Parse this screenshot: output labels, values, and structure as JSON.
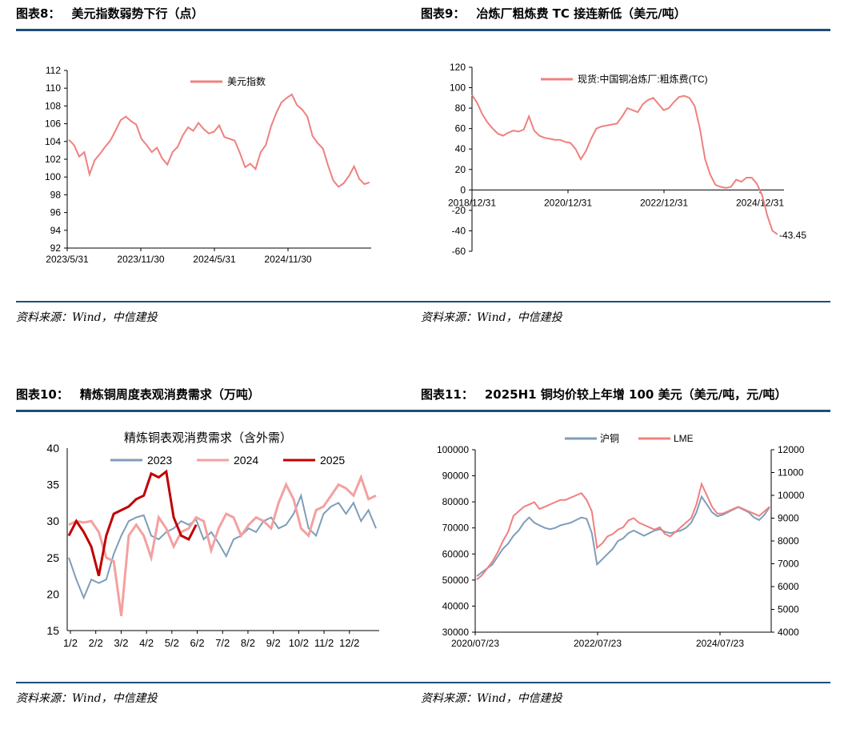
{
  "source_text": "资料来源：Wind，中信建投",
  "colors": {
    "rule": "#1f4e79",
    "pink": "#f08080",
    "blue": "#7f9db9",
    "dark_red": "#c00000",
    "light_pink": "#f4a0a0"
  },
  "panels": [
    {
      "num": "图表8：",
      "title": "美元指数弱势下行（点）"
    },
    {
      "num": "图表9：",
      "title": "冶炼厂粗炼费 TC 接连新低（美元/吨）"
    },
    {
      "num": "图表10：",
      "title": "精炼铜周度表观消费需求（万吨）"
    },
    {
      "num": "图表11：",
      "title": "2025H1 铜均价较上年增 100 美元（美元/吨，元/吨）"
    }
  ],
  "chart_data": [
    {
      "type": "line",
      "legend": [
        "美元指数"
      ],
      "y_ticks": [
        "112",
        "110",
        "108",
        "106",
        "104",
        "102",
        "100",
        "98",
        "96",
        "94",
        "92"
      ],
      "ylim": [
        92,
        112
      ],
      "x_ticks": [
        "2023/5/31",
        "2023/11/30",
        "2024/5/31",
        "2024/11/30"
      ],
      "series": [
        {
          "name": "美元指数",
          "values": [
            104.2,
            103.6,
            102.3,
            102.8,
            100.3,
            101.9,
            102.6,
            103.4,
            104.1,
            105.2,
            106.4,
            106.8,
            106.3,
            105.9,
            104.3,
            103.6,
            102.8,
            103.3,
            102.1,
            101.4,
            102.8,
            103.4,
            104.7,
            105.6,
            105.2,
            106.1,
            105.4,
            104.9,
            105.1,
            105.8,
            104.5,
            104.3,
            104.1,
            102.7,
            101.1,
            101.5,
            100.9,
            102.8,
            103.6,
            105.7,
            107.2,
            108.4,
            108.9,
            109.3,
            108.1,
            107.6,
            106.8,
            104.6,
            103.8,
            103.2,
            101.3,
            99.6,
            98.9,
            99.3,
            100.1,
            101.2,
            99.8,
            99.2,
            99.4
          ]
        }
      ]
    },
    {
      "type": "line",
      "legend": [
        "现货:中国铜冶炼厂:粗炼费(TC)"
      ],
      "y_ticks": [
        "120",
        "100",
        "80",
        "60",
        "40",
        "20",
        "0",
        "-20",
        "-40",
        "-60"
      ],
      "ylim": [
        -60,
        120
      ],
      "x_ticks": [
        "2018/12/31",
        "2020/12/31",
        "2022/12/31",
        "2024/12/31"
      ],
      "end_label": "-43.45",
      "series": [
        {
          "name": "TC",
          "values": [
            93,
            85,
            74,
            66,
            60,
            55,
            53,
            56,
            58,
            57,
            59,
            72,
            58,
            53,
            51,
            50,
            49,
            49,
            47,
            46,
            40,
            30,
            38,
            50,
            60,
            62,
            63,
            64,
            65,
            72,
            80,
            78,
            76,
            84,
            88,
            90,
            84,
            78,
            80,
            86,
            91,
            92,
            90,
            82,
            60,
            30,
            15,
            5,
            3,
            2,
            3,
            10,
            8,
            12,
            12,
            6,
            -5,
            -25,
            -40,
            -43.45
          ]
        }
      ]
    },
    {
      "type": "line",
      "title": "精炼铜表观消费需求（含外需）",
      "legend": [
        "2023",
        "2024",
        "2025"
      ],
      "y_ticks": [
        "40",
        "35",
        "30",
        "25",
        "20",
        "15"
      ],
      "ylim": [
        15,
        40
      ],
      "x_ticks": [
        "1/2",
        "2/2",
        "3/2",
        "4/2",
        "5/2",
        "6/2",
        "7/2",
        "8/2",
        "9/2",
        "10/2",
        "11/2",
        "12/2"
      ],
      "series": [
        {
          "name": "2023",
          "values": [
            25.0,
            22.0,
            19.5,
            22.0,
            21.5,
            22.0,
            25.5,
            28.0,
            30.0,
            30.5,
            30.8,
            28.0,
            27.5,
            28.5,
            29.0,
            30.0,
            29.5,
            30.2,
            27.5,
            28.5,
            27.0,
            25.2,
            27.5,
            28.0,
            29.0,
            28.5,
            30.0,
            30.5,
            29.0,
            29.5,
            31.0,
            33.5,
            29.0,
            28.0,
            31.0,
            32.0,
            32.5,
            31.0,
            32.5,
            30.0,
            31.5,
            29.0
          ]
        },
        {
          "name": "2024",
          "values": [
            29.5,
            30.0,
            29.8,
            30.0,
            28.5,
            25.0,
            24.5,
            17.0,
            28.0,
            29.5,
            28.0,
            25.0,
            30.5,
            29.0,
            26.5,
            28.5,
            29.0,
            30.5,
            30.0,
            26.0,
            29.0,
            31.0,
            30.5,
            28.0,
            29.5,
            30.5,
            30.0,
            29.0,
            32.5,
            35.0,
            33.0,
            29.0,
            28.0,
            31.5,
            32.0,
            33.5,
            35.0,
            34.5,
            33.5,
            36.0,
            33.0,
            33.5
          ]
        },
        {
          "name": "2025",
          "values": [
            28.0,
            30.0,
            28.5,
            26.5,
            22.5,
            28.0,
            31.0,
            31.5,
            32.0,
            33.0,
            33.5,
            36.5,
            36.0,
            36.8,
            30.5,
            28.0,
            27.5,
            29.5
          ]
        }
      ]
    },
    {
      "type": "line",
      "legend": [
        "沪铜",
        "LME"
      ],
      "y_left_ticks": [
        "100000",
        "90000",
        "80000",
        "70000",
        "60000",
        "50000",
        "40000",
        "30000"
      ],
      "y_right_ticks": [
        "12000",
        "11000",
        "10000",
        "9000",
        "8000",
        "7000",
        "6000",
        "5000",
        "4000"
      ],
      "ylim_left": [
        30000,
        100000
      ],
      "ylim_right": [
        4000,
        12000
      ],
      "x_ticks": [
        "2020/07/23",
        "2022/07/23",
        "2024/07/23"
      ],
      "series": [
        {
          "name": "沪铜",
          "axis": "left",
          "values": [
            51500,
            53000,
            54500,
            56000,
            59000,
            62000,
            64000,
            67000,
            69000,
            72000,
            74000,
            72000,
            71000,
            70000,
            69500,
            70000,
            71000,
            71500,
            72000,
            73000,
            74000,
            73500,
            68000,
            56000,
            58000,
            60000,
            62000,
            65000,
            66000,
            68000,
            69000,
            68000,
            67000,
            68000,
            69000,
            69500,
            68500,
            68000,
            68500,
            69000,
            70000,
            72000,
            76000,
            82000,
            79000,
            76000,
            74500,
            75000,
            76000,
            77000,
            78000,
            77000,
            76000,
            74000,
            73000,
            75000,
            78000
          ]
        },
        {
          "name": "LME",
          "axis": "right",
          "values": [
            6300,
            6500,
            6800,
            7100,
            7500,
            8000,
            8400,
            9100,
            9300,
            9500,
            9600,
            9700,
            9400,
            9500,
            9600,
            9700,
            9800,
            9800,
            9900,
            10000,
            10100,
            9800,
            9300,
            7700,
            7900,
            8200,
            8300,
            8500,
            8600,
            8900,
            9000,
            8800,
            8700,
            8600,
            8500,
            8600,
            8300,
            8200,
            8400,
            8600,
            8800,
            9000,
            9600,
            10500,
            10000,
            9500,
            9200,
            9200,
            9300,
            9400,
            9500,
            9400,
            9300,
            9200,
            9100,
            9300,
            9500
          ]
        }
      ]
    }
  ]
}
